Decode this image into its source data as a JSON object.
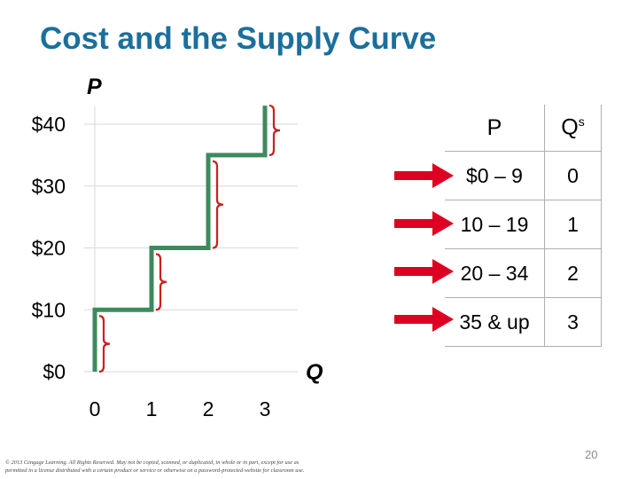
{
  "slide": {
    "title": "Cost and the Supply Curve",
    "y_axis_name": "P",
    "x_axis_name": "Q",
    "page_number": "20",
    "copyright_line1": "© 2013 Cengage Learning. All Rights Reserved. May not be copied, scanned, or duplicated, in whole or in part, except for use as",
    "copyright_line2": "permitted in a license distributed with a certain product or service or otherwise on a password-protected website for classroom use."
  },
  "colors": {
    "title": "#1b6f9c",
    "supply_line": "#3d8a5e",
    "brace": "#cc1f1f",
    "arrow": "#dd0022",
    "gridline": "#d9d9d9"
  },
  "chart_data": {
    "type": "line",
    "title": "",
    "xlabel": "Q",
    "ylabel": "P",
    "x_ticks": [
      "0",
      "1",
      "2",
      "3"
    ],
    "y_ticks": [
      "$0",
      "$10",
      "$20",
      "$30",
      "$40"
    ],
    "xlim": [
      0,
      3.4
    ],
    "ylim": [
      0,
      40
    ],
    "grid": true,
    "series": [
      {
        "x": [
          0,
          0,
          1,
          1,
          2,
          2,
          3,
          3
        ],
        "y": [
          0,
          10,
          10,
          20,
          20,
          35,
          35,
          43
        ]
      }
    ],
    "braces": [
      {
        "x": 0,
        "y_from": 0,
        "y_to": 9
      },
      {
        "x": 1,
        "y_from": 10,
        "y_to": 19
      },
      {
        "x": 2,
        "y_from": 20,
        "y_to": 34
      },
      {
        "x": 3,
        "y_from": 35,
        "y_to": 43
      }
    ]
  },
  "table": {
    "header_p": "P",
    "header_q": "Q",
    "header_q_sup": "s",
    "rows": [
      {
        "p": "$0 – 9",
        "q": "0"
      },
      {
        "p": "10 – 19",
        "q": "1"
      },
      {
        "p": "20 – 34",
        "q": "2"
      },
      {
        "p": "35 & up",
        "q": "3"
      }
    ]
  }
}
